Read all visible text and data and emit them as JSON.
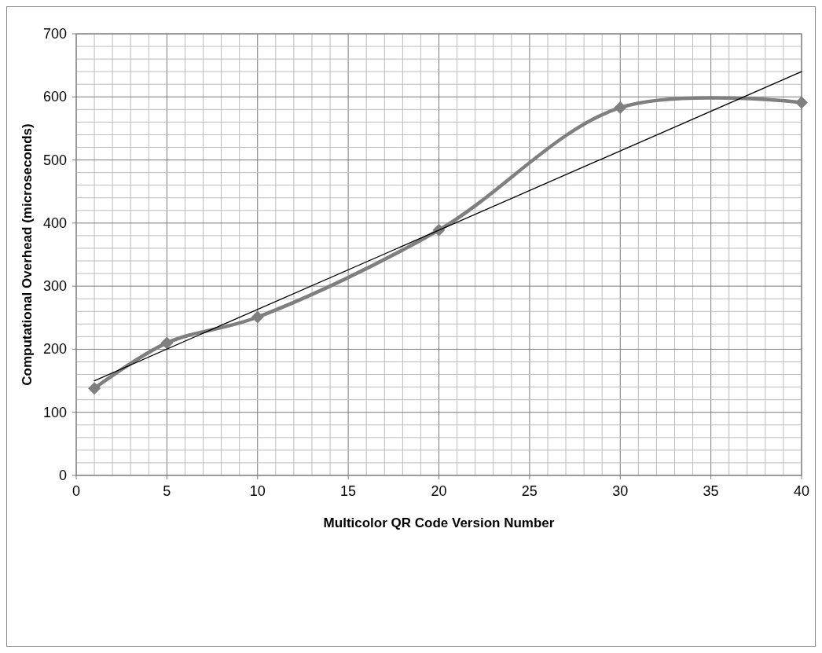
{
  "chart_data": {
    "type": "line",
    "xlabel": "Multicolor QR Code Version Number",
    "ylabel": "Computational Overhead (microseconds)",
    "xlim": [
      0,
      40
    ],
    "ylim": [
      0,
      700
    ],
    "xticks": [
      0,
      {
        "value": 1,
        "label": null
      },
      {
        "value": 2,
        "label": null
      },
      {
        "value": 3,
        "label": null
      },
      {
        "value": 4,
        "label": null
      },
      5,
      {
        "value": 6,
        "label": null
      },
      {
        "value": 7,
        "label": null
      },
      {
        "value": 8,
        "label": null
      },
      {
        "value": 9,
        "label": null
      },
      10,
      {
        "value": 11,
        "label": null
      },
      {
        "value": 12,
        "label": null
      },
      {
        "value": 13,
        "label": null
      },
      {
        "value": 14,
        "label": null
      },
      15,
      {
        "value": 16,
        "label": null
      },
      {
        "value": 17,
        "label": null
      },
      {
        "value": 18,
        "label": null
      },
      {
        "value": 19,
        "label": null
      },
      20,
      {
        "value": 21,
        "label": null
      },
      {
        "value": 22,
        "label": null
      },
      {
        "value": 23,
        "label": null
      },
      {
        "value": 24,
        "label": null
      },
      25,
      {
        "value": 26,
        "label": null
      },
      {
        "value": 27,
        "label": null
      },
      {
        "value": 28,
        "label": null
      },
      {
        "value": 29,
        "label": null
      },
      30,
      {
        "value": 31,
        "label": null
      },
      {
        "value": 32,
        "label": null
      },
      {
        "value": 33,
        "label": null
      },
      {
        "value": 34,
        "label": null
      },
      35,
      {
        "value": 36,
        "label": null
      },
      {
        "value": 37,
        "label": null
      },
      {
        "value": 38,
        "label": null
      },
      {
        "value": 39,
        "label": null
      },
      40
    ],
    "yticks": [
      0,
      {
        "value": 20,
        "label": null
      },
      {
        "value": 40,
        "label": null
      },
      {
        "value": 60,
        "label": null
      },
      {
        "value": 80,
        "label": null
      },
      100,
      {
        "value": 120,
        "label": null
      },
      {
        "value": 140,
        "label": null
      },
      {
        "value": 160,
        "label": null
      },
      {
        "value": 180,
        "label": null
      },
      200,
      {
        "value": 220,
        "label": null
      },
      {
        "value": 240,
        "label": null
      },
      {
        "value": 260,
        "label": null
      },
      {
        "value": 280,
        "label": null
      },
      300,
      {
        "value": 320,
        "label": null
      },
      {
        "value": 340,
        "label": null
      },
      {
        "value": 360,
        "label": null
      },
      {
        "value": 380,
        "label": null
      },
      400,
      {
        "value": 420,
        "label": null
      },
      {
        "value": 440,
        "label": null
      },
      {
        "value": 460,
        "label": null
      },
      {
        "value": 480,
        "label": null
      },
      500,
      {
        "value": 520,
        "label": null
      },
      {
        "value": 540,
        "label": null
      },
      {
        "value": 560,
        "label": null
      },
      {
        "value": 580,
        "label": null
      },
      600,
      {
        "value": 620,
        "label": null
      },
      {
        "value": 640,
        "label": null
      },
      {
        "value": 660,
        "label": null
      },
      {
        "value": 680,
        "label": null
      },
      700
    ],
    "grid": true,
    "series": [
      {
        "color": "#7f7f7f",
        "marker": "diamond",
        "x": [
          1,
          5,
          10,
          20,
          30,
          40
        ],
        "values": [
          138,
          210,
          251,
          389,
          583,
          591
        ]
      },
      {
        "color": "#000000",
        "marker": "none",
        "x": [
          1,
          40
        ],
        "values": [
          150,
          640
        ]
      }
    ]
  }
}
